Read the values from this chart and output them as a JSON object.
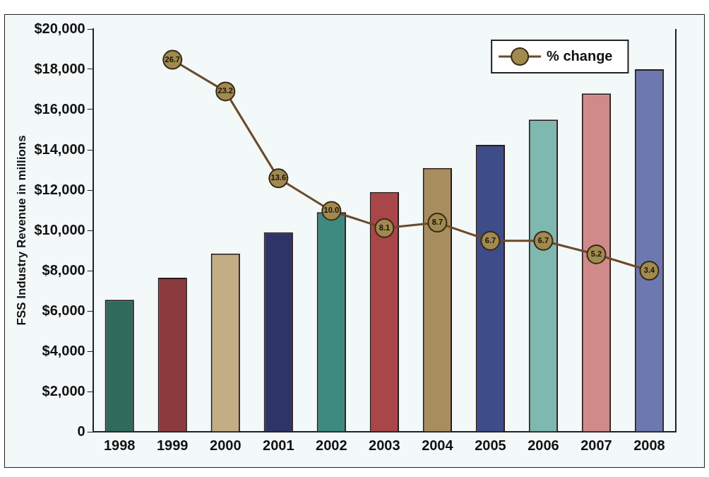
{
  "chart_data": {
    "type": "bar",
    "ylabel": "FSS Industry Revenue in millions",
    "categories": [
      "1998",
      "1999",
      "2000",
      "2001",
      "2002",
      "2003",
      "2004",
      "2005",
      "2006",
      "2007",
      "2008"
    ],
    "series": [
      {
        "colors": [
          "#2e6b5c",
          "#8b3a3e",
          "#c2ae85",
          "#2d3568",
          "#3f8a80",
          "#a8464a",
          "#a88e5e",
          "#3e4d8a",
          "#7fb8b0",
          "#d08a8a",
          "#6d78b0"
        ],
        "values": [
          6550,
          7650,
          8850,
          9900,
          10900,
          11900,
          13100,
          14250,
          15500,
          16800,
          18000
        ]
      },
      {
        "type": "line",
        "name": "% change",
        "color": "#6b4a2a",
        "axis": "y2",
        "values": [
          null,
          26.7,
          23.2,
          13.6,
          10.0,
          8.1,
          8.7,
          6.7,
          6.7,
          5.2,
          3.4
        ],
        "value_labels": [
          null,
          "26.7",
          "23.2",
          "13.6",
          "10.0",
          "8.1",
          "8.7",
          "6.7",
          "6.7",
          "5.2",
          "3.4"
        ]
      }
    ],
    "ylim": [
      0,
      20000
    ],
    "yticks": [
      {
        "value": 0,
        "label": "0"
      },
      {
        "value": 2000,
        "label": "$2,000"
      },
      {
        "value": 4000,
        "label": "$4,000"
      },
      {
        "value": 6000,
        "label": "$6,000"
      },
      {
        "value": 8000,
        "label": "$8,000"
      },
      {
        "value": 10000,
        "label": "$10,000"
      },
      {
        "value": 12000,
        "label": "$12,000"
      },
      {
        "value": 14000,
        "label": "$14,000"
      },
      {
        "value": 16000,
        "label": "$16,000"
      },
      {
        "value": 18000,
        "label": "$18,000"
      },
      {
        "value": 20000,
        "label": "$20,000"
      }
    ],
    "y2lim": [
      -14.4,
      30.1
    ],
    "marker": "circle",
    "grid": false,
    "legend": "top right"
  }
}
